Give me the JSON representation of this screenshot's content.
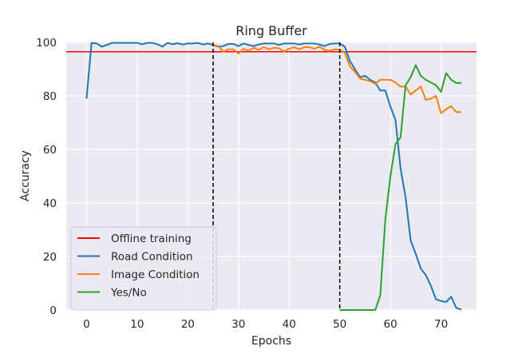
{
  "chart_data": {
    "type": "line",
    "title": "Ring Buffer",
    "xlabel": "Epochs",
    "ylabel": "Accuracy",
    "xlim": [
      -4,
      77
    ],
    "ylim": [
      0,
      100
    ],
    "xticks": [
      0,
      10,
      20,
      30,
      40,
      50,
      60,
      70
    ],
    "yticks": [
      0,
      20,
      40,
      60,
      80,
      100
    ],
    "grid": true,
    "legend_position": "lower-left",
    "background_color": "#eaeaf2",
    "vertical_markers": [
      25,
      50
    ],
    "horizontal_reference": {
      "name": "Offline training",
      "y": 96.5,
      "color": "#ff0000"
    },
    "series": [
      {
        "name": "Road Condition",
        "color": "#1f77b4",
        "x": [
          0,
          1,
          2,
          3,
          4,
          5,
          6,
          7,
          8,
          9,
          10,
          11,
          12,
          13,
          14,
          15,
          16,
          17,
          18,
          19,
          20,
          21,
          22,
          23,
          24,
          25,
          26,
          27,
          28,
          29,
          30,
          31,
          32,
          33,
          34,
          35,
          36,
          37,
          38,
          39,
          40,
          41,
          42,
          43,
          44,
          45,
          46,
          47,
          48,
          49,
          50,
          51,
          52,
          53,
          54,
          55,
          56,
          57,
          58,
          59,
          60,
          61,
          62,
          63,
          64,
          65,
          66,
          67,
          68,
          69,
          70,
          71,
          72,
          73,
          74
        ],
        "values": [
          79,
          99.8,
          99.6,
          98.4,
          99,
          99.8,
          99.8,
          99.8,
          99.8,
          99.8,
          99.8,
          99.3,
          99.8,
          99.8,
          99.3,
          98.4,
          99.8,
          99.3,
          99.7,
          99.2,
          99.6,
          99.6,
          99.8,
          99.2,
          99.6,
          99,
          98.4,
          98.6,
          99.4,
          99.4,
          98.6,
          99.6,
          99,
          98.6,
          99.2,
          99.6,
          99.6,
          99.6,
          99,
          99.6,
          99.6,
          99.6,
          99.2,
          99.6,
          99.6,
          99.6,
          99.2,
          98.6,
          99.4,
          99.6,
          99.6,
          98.4,
          93,
          90,
          87,
          87.5,
          86,
          85,
          82,
          82,
          76,
          71,
          53,
          42,
          26,
          21,
          15.5,
          13,
          9,
          4,
          3.4,
          3,
          5,
          0.8,
          0.2
        ]
      },
      {
        "name": "Image Condition",
        "color": "#ff7f0e",
        "x": [
          25,
          26,
          27,
          28,
          29,
          30,
          31,
          32,
          33,
          34,
          35,
          36,
          37,
          38,
          39,
          40,
          41,
          42,
          43,
          44,
          45,
          46,
          47,
          48,
          49,
          50,
          51,
          52,
          53,
          54,
          55,
          56,
          57,
          58,
          59,
          60,
          61,
          62,
          63,
          64,
          65,
          66,
          67,
          68,
          69,
          70,
          71,
          72,
          73,
          74
        ],
        "values": [
          99,
          98.6,
          96.5,
          97.4,
          97.4,
          95.8,
          97.6,
          96.8,
          98,
          97.2,
          98.2,
          97.4,
          98,
          97.8,
          96.6,
          97.6,
          98.2,
          97.4,
          98.2,
          98.2,
          97.6,
          98.4,
          97.2,
          96.8,
          97.4,
          97.2,
          96.2,
          91,
          89,
          86.5,
          86,
          85.5,
          84.5,
          86,
          86,
          86,
          85,
          83.5,
          83.5,
          80.5,
          82,
          83.5,
          78.5,
          79,
          80,
          73.5,
          75,
          76.2,
          73.9,
          74
        ]
      },
      {
        "name": "Yes/No",
        "color": "#2ca02c",
        "x": [
          50,
          51,
          52,
          53,
          54,
          55,
          56,
          57,
          58,
          59,
          60,
          61,
          62,
          63,
          64,
          65,
          66,
          67,
          68,
          69,
          70,
          71,
          72,
          73,
          74
        ],
        "values": [
          0,
          0,
          0,
          0,
          0,
          0,
          0,
          0,
          5.5,
          34,
          50,
          62,
          64.5,
          84,
          87,
          91.5,
          87.5,
          86,
          85,
          84,
          81.5,
          88.5,
          86,
          84.8,
          84.8
        ]
      }
    ]
  }
}
